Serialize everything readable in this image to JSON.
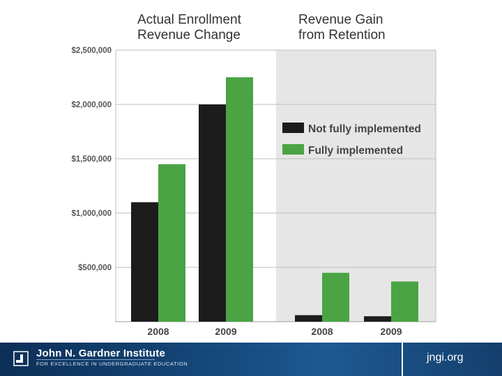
{
  "chart_data": {
    "type": "bar",
    "panels": [
      {
        "title": "Actual Enrollment\nRevenue Change",
        "categories": [
          "2008",
          "2009"
        ],
        "series": [
          {
            "name": "Not fully implemented",
            "values": [
              1100000,
              2000000
            ]
          },
          {
            "name": "Fully implemented",
            "values": [
              1450000,
              2250000
            ]
          }
        ]
      },
      {
        "title": "Revenue Gain\nfrom Retention",
        "categories": [
          "2008",
          "2009"
        ],
        "series": [
          {
            "name": "Not fully implemented",
            "values": [
              60000,
              50000
            ]
          },
          {
            "name": "Fully implemented",
            "values": [
              450000,
              370000
            ]
          }
        ]
      }
    ],
    "y_ticks": [
      "$500,000",
      "$1,000,000",
      "$1,500,000",
      "$2,000,000",
      "$2,500,000"
    ],
    "ylim": [
      0,
      2500000
    ],
    "grid": true,
    "legend": {
      "placement": "top-right",
      "entries": [
        "Not fully implemented",
        "Fully implemented"
      ]
    },
    "colors": {
      "Not fully implemented": "#1c1c1c",
      "Fully implemented": "#4aa444",
      "right_panel_background": "#e6e6e6"
    }
  },
  "footer": {
    "org_name": "John N. Gardner Institute",
    "org_tagline": "FOR EXCELLENCE IN UNDERGRADUATE EDUCATION",
    "site": "jngi.org",
    "background_color": "#0f3560"
  }
}
